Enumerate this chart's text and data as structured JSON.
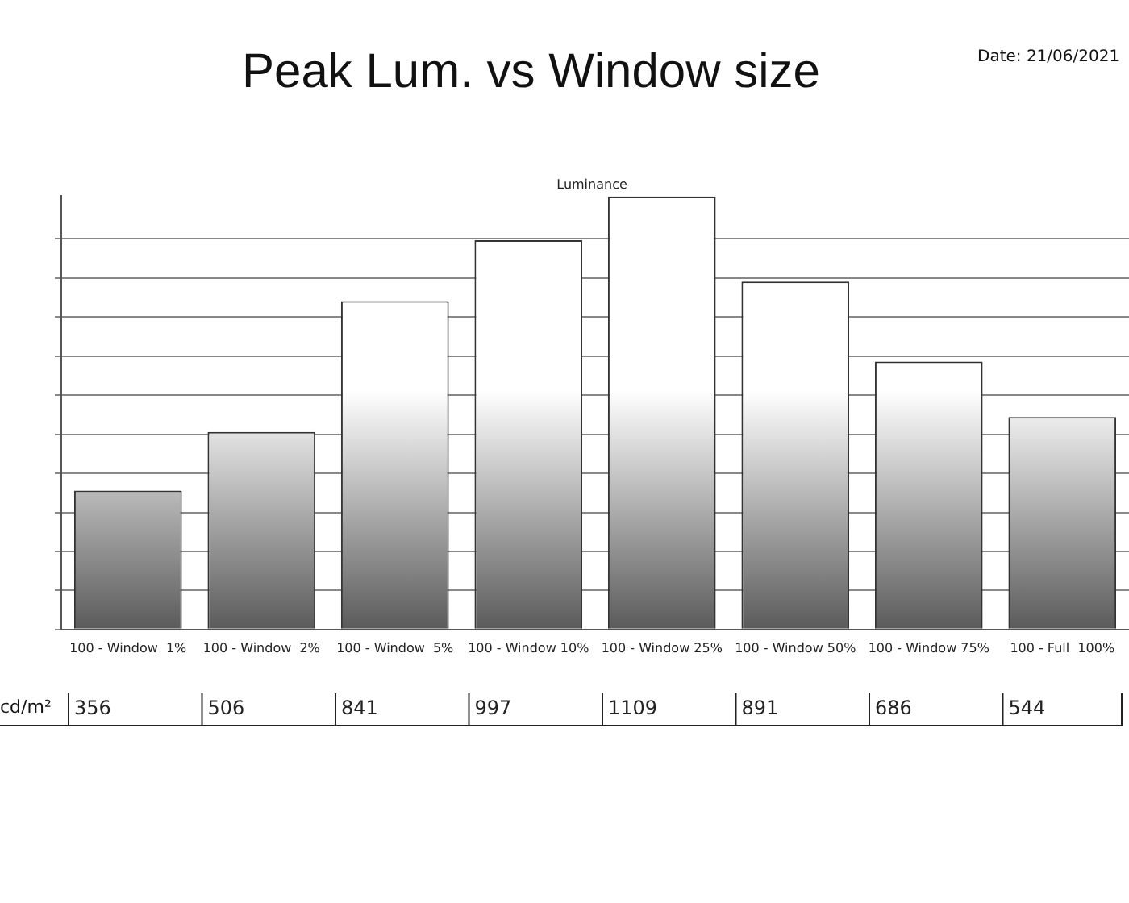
{
  "chart_data": {
    "type": "bar",
    "title": "Peak Lum. vs Window size",
    "subtitle": "Luminance",
    "categories": [
      "100 - Window  1%",
      "100 - Window  2%",
      "100 - Window  5%",
      "100 - Window 10%",
      "100 - Window 25%",
      "100 - Window 50%",
      "100 - Window 75%",
      "100 - Full  100%"
    ],
    "values": [
      356,
      506,
      841,
      997,
      1109,
      891,
      686,
      544
    ],
    "color": "#5a5a5a",
    "ylim": [
      0,
      1110
    ],
    "yticks": [
      0,
      100,
      200,
      300,
      400,
      500,
      600,
      700,
      800,
      900,
      1000
    ],
    "tick_labels": "x",
    "grid": "y",
    "legend": false,
    "data_labels": true,
    "annotations": [
      "cd/m²",
      "Date: 21/06/2021"
    ]
  }
}
